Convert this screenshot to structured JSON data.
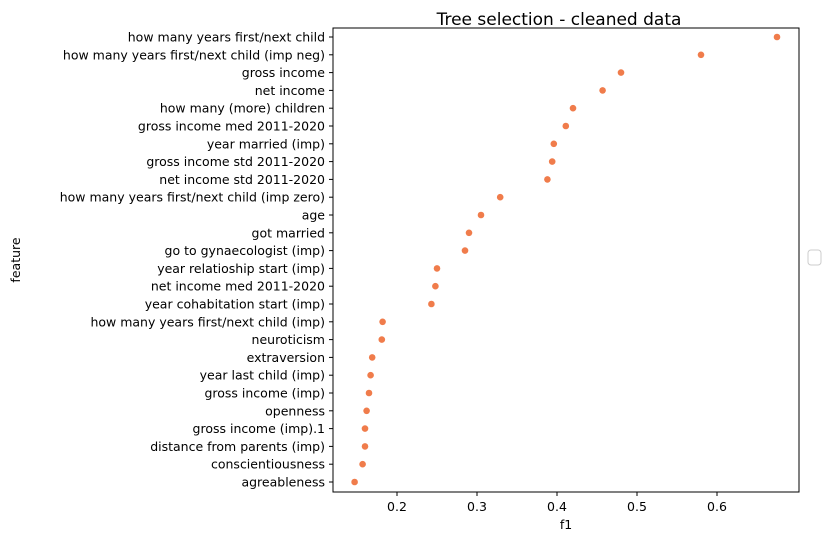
{
  "chart_data": {
    "type": "scatter",
    "title": "Tree selection - cleaned data",
    "xlabel": "f1",
    "ylabel": "feature",
    "xlim": [
      0.12,
      0.7
    ],
    "xticks": [
      0.2,
      0.3,
      0.4,
      0.5,
      0.6
    ],
    "xtick_labels": [
      "0.2",
      "0.3",
      "0.4",
      "0.5",
      "0.6"
    ],
    "grid": false,
    "legend": "center-right, empty",
    "marker_color": "#f07c4b",
    "categories": [
      "how many years first/next child",
      "how many years first/next child (imp neg)",
      "gross income",
      "net income",
      "how many (more) children",
      "gross income med 2011-2020",
      "year married (imp)",
      "gross income std 2011-2020",
      "net income std 2011-2020",
      "how many years first/next child (imp zero)",
      "age",
      "got married",
      "go to gynaecologist (imp)",
      "year relatioship start (imp)",
      "net income med 2011-2020",
      "year cohabitation start (imp)",
      "how many years first/next child (imp)",
      "neuroticism",
      "extraversion",
      "year last child (imp)",
      "gross income (imp)",
      "openness",
      "gross income (imp).1",
      "distance from parents (imp)",
      "conscientiousness",
      "agreableness"
    ],
    "values": [
      0.675,
      0.58,
      0.48,
      0.457,
      0.42,
      0.411,
      0.396,
      0.394,
      0.388,
      0.329,
      0.305,
      0.29,
      0.285,
      0.25,
      0.248,
      0.243,
      0.182,
      0.181,
      0.169,
      0.167,
      0.165,
      0.162,
      0.16,
      0.16,
      0.157,
      0.147
    ]
  }
}
